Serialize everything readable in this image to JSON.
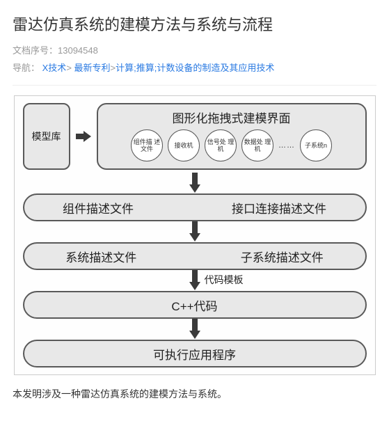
{
  "title": "雷达仿真系统的建模方法与系统与流程",
  "doc_id_label": "文档序号：",
  "doc_id": "13094548",
  "nav_label": "导航：",
  "nav_links": [
    {
      "text": "X技术",
      "sep": "> "
    },
    {
      "text": "最新专利",
      "sep": ">"
    },
    {
      "text": "计算;推算;计数设备的制造及其应用技术",
      "sep": ""
    }
  ],
  "diagram": {
    "module_library": "模型库",
    "top_panel_title": "图形化拖拽式建模界面",
    "bubbles": [
      "组件描\n述文件",
      "接收机",
      "信号处\n理机",
      "数据处\n理机",
      "子系统n"
    ],
    "dots": "……",
    "stage1_left": "组件描述文件",
    "stage1_right": "接口连接描述文件",
    "stage2_left": "系统描述文件",
    "stage2_right": "子系统描述文件",
    "arrow_label": "代码模板",
    "stage3": "C++代码",
    "stage4": "可执行应用程序",
    "colors": {
      "box_fill": "#e8e8e8",
      "box_border": "#595959",
      "bubble_fill": "#ffffff",
      "arrow": "#3a3a3a"
    }
  },
  "description": "本发明涉及一种雷达仿真系统的建模方法与系统。"
}
